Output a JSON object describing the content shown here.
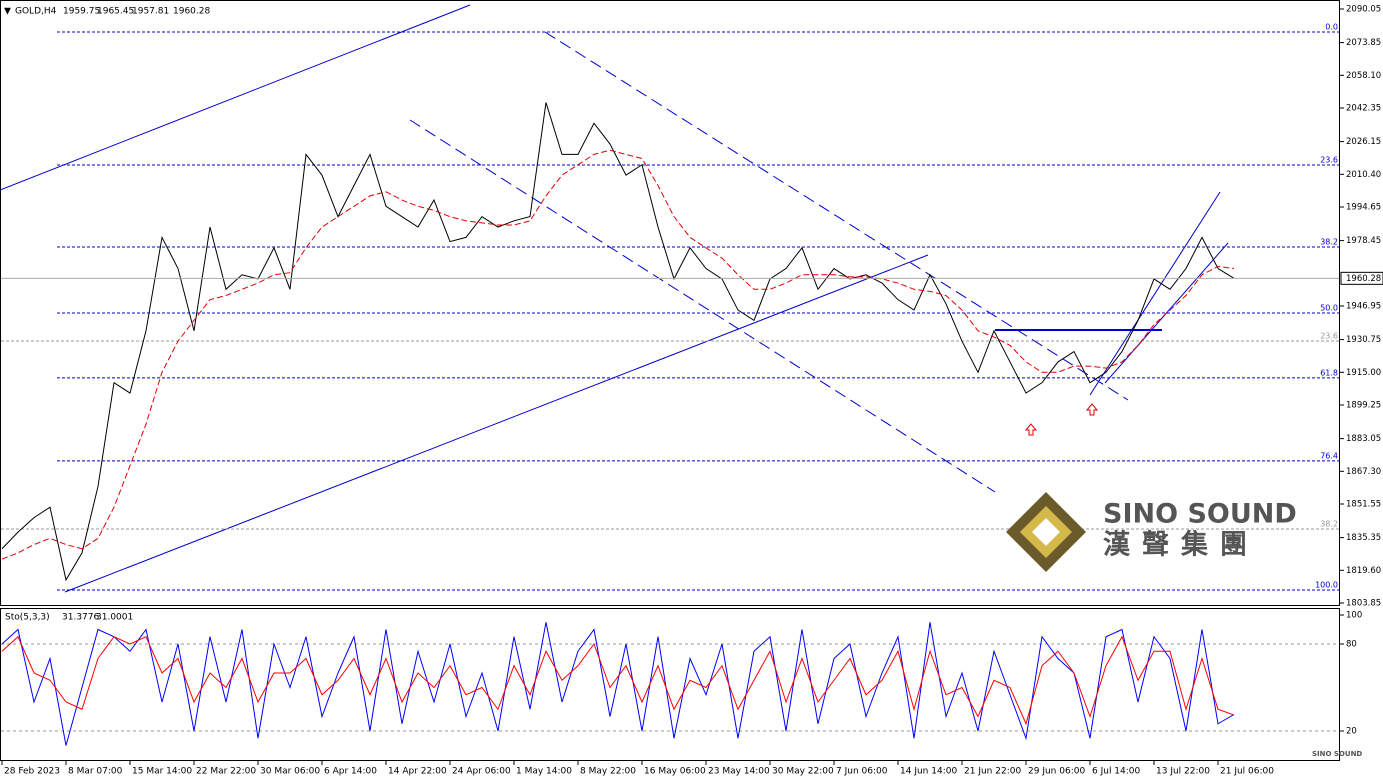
{
  "chart_data": [
    {
      "type": "line",
      "symbol": "GOLD,H4",
      "ohlc": [
        1959.75,
        1965.45,
        1957.81,
        1960.28
      ],
      "categories": [
        "28 Feb 2023",
        null,
        null,
        null,
        "8 Mar 07:00",
        null,
        null,
        null,
        "15 Mar 14:00",
        null,
        null,
        null,
        "22 Mar 22:00",
        null,
        null,
        null,
        "30 Mar 06:00",
        null,
        null,
        null,
        "6 Apr 14:00",
        null,
        null,
        null,
        "14 Apr 22:00",
        null,
        null,
        null,
        "24 Apr 06:00",
        null,
        null,
        null,
        "1 May 14:00",
        null,
        null,
        null,
        "8 May 22:00",
        null,
        null,
        null,
        "16 May 06:00",
        null,
        null,
        null,
        "23 May 14:00",
        null,
        null,
        null,
        "30 May 22:00",
        null,
        null,
        null,
        "7 Jun 06:00",
        null,
        null,
        null,
        "14 Jun 14:00",
        null,
        null,
        null,
        "21 Jun 22:00",
        null,
        null,
        null,
        "29 Jun 06:00",
        null,
        null,
        null,
        "6 Jul 14:00",
        null,
        null,
        null,
        "13 Jul 22:00",
        null,
        null,
        null,
        "21 Jul 06:00",
        null
      ],
      "series": [
        {
          "color": "#000000",
          "values": [
            1830,
            1838,
            1845,
            1850,
            1815,
            1828,
            1860,
            1910,
            1905,
            1935,
            1980,
            1965,
            1935,
            1985,
            1955,
            1962,
            1960,
            1975,
            1955,
            2020,
            2010,
            1990,
            2005,
            2020,
            1995,
            1990,
            1985,
            1998,
            1978,
            1980,
            1990,
            1985,
            1988,
            1990,
            2045,
            2020,
            2020,
            2035,
            2025,
            2010,
            2015,
            1985,
            1960,
            1975,
            1965,
            1960,
            1945,
            1940,
            1960,
            1965,
            1975,
            1955,
            1965,
            1960,
            1962,
            1958,
            1950,
            1945,
            1962,
            1948,
            1930,
            1915,
            1935,
            1920,
            1905,
            1910,
            1920,
            1925,
            1910,
            1915,
            1925,
            1940,
            1960,
            1955,
            1965,
            1980,
            1965,
            1960.28
          ]
        },
        {
          "color": "#e00000",
          "values": [
            1825,
            1828,
            1832,
            1835,
            1832,
            1830,
            1835,
            1850,
            1870,
            1890,
            1915,
            1930,
            1940,
            1950,
            1952,
            1955,
            1958,
            1962,
            1963,
            1975,
            1985,
            1990,
            1995,
            2000,
            2002,
            1998,
            1995,
            1993,
            1990,
            1988,
            1987,
            1986,
            1986,
            1988,
            2000,
            2010,
            2015,
            2020,
            2022,
            2020,
            2018,
            2005,
            1990,
            1980,
            1975,
            1970,
            1962,
            1955,
            1955,
            1958,
            1962,
            1962,
            1962,
            1961,
            1961,
            1960,
            1958,
            1955,
            1954,
            1952,
            1945,
            1935,
            1932,
            1928,
            1920,
            1915,
            1915,
            1918,
            1918,
            1917,
            1920,
            1928,
            1938,
            1945,
            1952,
            1962,
            1966,
            1965
          ]
        }
      ],
      "ylim": [
        1803.85,
        2090.05
      ],
      "yticks": [
        2090.05,
        2073.85,
        {
          "value": 2058.1,
          "label": "2058.10"
        },
        2042.35,
        2026.15,
        {
          "value": 2010.4,
          "label": "2010.40"
        },
        1994.65,
        1978.45,
        1946.95,
        1930.75,
        {
          "value": 1915,
          "label": "1915.00"
        },
        1899.25,
        1883.05,
        {
          "value": 1867.3,
          "label": "1867.30"
        },
        1851.55,
        1835.35,
        {
          "value": 1819.6,
          "label": "1819.60"
        },
        1803.85
      ],
      "fib_levels": [
        {
          "label": "0.0",
          "value": 2078.97,
          "color": "#0000cc"
        },
        {
          "label": "23.6",
          "value": 2014.9,
          "color": "#0000cc"
        },
        {
          "label": "38.2",
          "value": 1975.4,
          "color": "#0000cc"
        },
        {
          "label": "50.0",
          "value": 1943.6,
          "color": "#0000cc"
        },
        {
          "label": "61.8",
          "value": 1912.3,
          "color": "#0000cc"
        },
        {
          "label": "76.4",
          "value": 1872.3,
          "color": "#0000cc"
        },
        {
          "label": "100.0",
          "value": 1810.1,
          "color": "#0000cc"
        },
        {
          "label": "23.6",
          "value": 1930.1,
          "color": "#999999"
        },
        {
          "label": "38.2",
          "value": 1839.5,
          "color": "#999999"
        }
      ]
    },
    {
      "type": "line",
      "title": "Sto(5,3,3)",
      "series": [
        {
          "color": "#0000ff",
          "values": [
            80,
            90,
            40,
            70,
            10,
            50,
            90,
            85,
            75,
            90,
            40,
            80,
            20,
            85,
            40,
            90,
            15,
            80,
            50,
            85,
            30,
            60,
            85,
            20,
            90,
            25,
            75,
            40,
            80,
            30,
            60,
            20,
            85,
            35,
            95,
            40,
            75,
            90,
            30,
            80,
            20,
            85,
            15,
            70,
            45,
            80,
            15,
            75,
            85,
            20,
            90,
            25,
            70,
            80,
            30,
            60,
            85,
            15,
            95,
            30,
            60,
            20,
            75,
            45,
            15,
            85,
            70,
            60,
            15,
            85,
            90,
            40,
            85,
            70,
            20,
            90,
            25,
            31.3776
          ]
        },
        {
          "color": "#ff0000",
          "values": [
            75,
            85,
            60,
            55,
            40,
            35,
            70,
            85,
            80,
            85,
            60,
            70,
            40,
            60,
            50,
            70,
            40,
            60,
            60,
            70,
            45,
            55,
            70,
            45,
            70,
            40,
            60,
            50,
            65,
            45,
            50,
            35,
            65,
            45,
            75,
            55,
            65,
            80,
            50,
            65,
            40,
            65,
            35,
            55,
            50,
            65,
            35,
            55,
            75,
            40,
            70,
            40,
            55,
            70,
            45,
            55,
            75,
            35,
            75,
            45,
            50,
            30,
            55,
            50,
            25,
            65,
            75,
            60,
            30,
            65,
            85,
            55,
            75,
            75,
            35,
            70,
            35,
            31.0001
          ]
        }
      ],
      "ylim": [
        0,
        100
      ],
      "yticks": [
        100,
        80,
        20
      ],
      "levels": [
        80,
        20
      ]
    }
  ],
  "watermark": {
    "name": "SINO SOUND",
    "chinese": "漢聲集團"
  }
}
